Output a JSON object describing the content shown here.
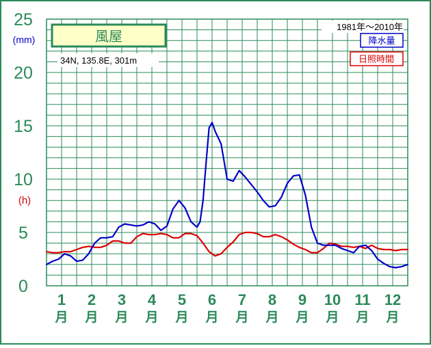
{
  "chart_data": {
    "type": "line",
    "station_name": "風屋",
    "location": "34N, 135.8E, 301m",
    "period": "1981年～2010年",
    "y_unit_precip": "(mm)",
    "y_unit_sun": "(h)",
    "ylim": [
      0,
      25
    ],
    "y_ticks": [
      "0",
      "5",
      "10",
      "15",
      "20",
      "25"
    ],
    "month_numbers": [
      "1",
      "2",
      "3",
      "4",
      "5",
      "6",
      "7",
      "8",
      "9",
      "10",
      "11",
      "12"
    ],
    "month_suffix": "月",
    "x_range": [
      1,
      13
    ],
    "series": [
      {
        "name": "降水量",
        "color": "#0000c8",
        "x": [
          1.0,
          1.2,
          1.4,
          1.6,
          1.8,
          2.0,
          2.2,
          2.4,
          2.6,
          2.8,
          3.0,
          3.2,
          3.4,
          3.6,
          3.8,
          4.0,
          4.2,
          4.4,
          4.6,
          4.8,
          5.0,
          5.2,
          5.4,
          5.6,
          5.8,
          6.0,
          6.1,
          6.2,
          6.3,
          6.4,
          6.5,
          6.6,
          6.8,
          7.0,
          7.2,
          7.4,
          7.6,
          7.8,
          8.0,
          8.2,
          8.4,
          8.6,
          8.8,
          9.0,
          9.2,
          9.4,
          9.6,
          9.8,
          10.0,
          10.2,
          10.4,
          10.6,
          10.8,
          11.0,
          11.2,
          11.4,
          11.6,
          11.8,
          12.0,
          12.2,
          12.4,
          12.6,
          12.8,
          13.0
        ],
        "y": [
          2.0,
          2.3,
          2.5,
          3.0,
          2.8,
          2.3,
          2.4,
          3.0,
          4.0,
          4.5,
          4.5,
          4.6,
          5.5,
          5.8,
          5.7,
          5.6,
          5.7,
          6.0,
          5.8,
          5.2,
          5.6,
          7.2,
          8.0,
          7.3,
          6.0,
          5.5,
          6.0,
          8.0,
          11.5,
          14.8,
          15.3,
          14.5,
          13.3,
          10.0,
          9.8,
          10.8,
          10.2,
          9.5,
          8.8,
          8.0,
          7.4,
          7.5,
          8.3,
          9.6,
          10.3,
          10.4,
          8.5,
          5.5,
          4.0,
          3.8,
          3.8,
          3.8,
          3.5,
          3.3,
          3.1,
          3.7,
          3.8,
          3.3,
          2.5,
          2.1,
          1.8,
          1.7,
          1.8,
          2.0
        ]
      },
      {
        "name": "日照時間",
        "color": "#dc0000",
        "x": [
          1.0,
          1.2,
          1.4,
          1.6,
          1.8,
          2.0,
          2.2,
          2.4,
          2.6,
          2.8,
          3.0,
          3.2,
          3.4,
          3.6,
          3.8,
          4.0,
          4.2,
          4.4,
          4.6,
          4.8,
          5.0,
          5.2,
          5.4,
          5.6,
          5.8,
          6.0,
          6.2,
          6.4,
          6.6,
          6.8,
          7.0,
          7.2,
          7.4,
          7.6,
          7.8,
          8.0,
          8.2,
          8.4,
          8.6,
          8.8,
          9.0,
          9.2,
          9.4,
          9.6,
          9.8,
          10.0,
          10.2,
          10.4,
          10.6,
          10.8,
          11.0,
          11.2,
          11.4,
          11.6,
          11.8,
          12.0,
          12.2,
          12.4,
          12.6,
          12.8,
          13.0
        ],
        "y": [
          3.2,
          3.1,
          3.1,
          3.2,
          3.2,
          3.4,
          3.6,
          3.7,
          3.6,
          3.6,
          3.8,
          4.2,
          4.2,
          4.0,
          4.0,
          4.6,
          4.9,
          4.8,
          4.8,
          4.9,
          4.8,
          4.5,
          4.5,
          4.9,
          4.9,
          4.7,
          4.0,
          3.2,
          2.8,
          3.0,
          3.6,
          4.1,
          4.8,
          5.0,
          5.0,
          4.9,
          4.6,
          4.6,
          4.8,
          4.6,
          4.3,
          3.9,
          3.6,
          3.4,
          3.1,
          3.1,
          3.5,
          4.0,
          3.9,
          3.7,
          3.7,
          3.6,
          3.7,
          3.5,
          3.8,
          3.5,
          3.4,
          3.4,
          3.3,
          3.4,
          3.4
        ]
      }
    ],
    "grid": true,
    "legend": "top-right"
  }
}
